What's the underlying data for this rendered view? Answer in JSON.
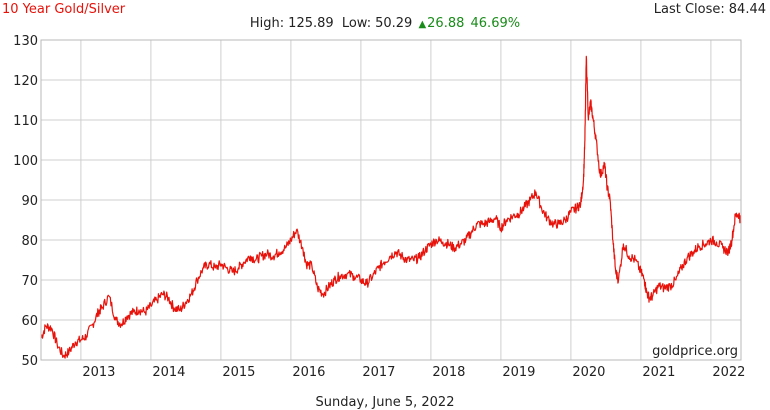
{
  "header": {
    "title": "10 Year Gold/Silver",
    "last_close_label": "Last Close:",
    "last_close_value": "84.44"
  },
  "stats": {
    "high_label": "High:",
    "high_value": "125.89",
    "low_label": "Low:",
    "low_value": "50.29",
    "change_value": "26.88",
    "change_pct": "46.69%"
  },
  "watermark": "goldprice.org",
  "footer_date": "Sunday, June 5, 2022",
  "colors": {
    "line": "#e8120a",
    "grid": "#cfcfcf",
    "up": "#1a8c1a",
    "title": "#e8120a"
  },
  "chart_data": {
    "type": "line",
    "title": "10 Year Gold/Silver",
    "xlabel": "",
    "ylabel": "",
    "xlim": [
      2012.43,
      2022.43
    ],
    "ylim": [
      50,
      130
    ],
    "yticks": [
      50,
      60,
      70,
      80,
      90,
      100,
      110,
      120,
      130
    ],
    "xticks": [
      2013,
      2014,
      2015,
      2016,
      2017,
      2018,
      2019,
      2020,
      2021,
      2022
    ],
    "grid": true,
    "legend": "none",
    "series": [
      {
        "x": [
          2012.43,
          2012.5,
          2012.58,
          2012.66,
          2012.75,
          2012.83,
          2012.92,
          2013.0,
          2013.08,
          2013.17,
          2013.25,
          2013.3,
          2013.4,
          2013.5,
          2013.58,
          2013.66,
          2013.75,
          2013.83,
          2013.92,
          2014.0,
          2014.08,
          2014.17,
          2014.25,
          2014.33,
          2014.42,
          2014.5,
          2014.58,
          2014.66,
          2014.75,
          2014.83,
          2014.92,
          2015.0,
          2015.08,
          2015.17,
          2015.25,
          2015.33,
          2015.42,
          2015.5,
          2015.58,
          2015.66,
          2015.75,
          2015.83,
          2015.92,
          2016.0,
          2016.08,
          2016.17,
          2016.22,
          2016.3,
          2016.38,
          2016.46,
          2016.55,
          2016.62,
          2016.7,
          2016.8,
          2016.9,
          2017.0,
          2017.08,
          2017.17,
          2017.25,
          2017.33,
          2017.42,
          2017.5,
          2017.58,
          2017.66,
          2017.75,
          2017.83,
          2017.92,
          2018.0,
          2018.08,
          2018.17,
          2018.25,
          2018.33,
          2018.42,
          2018.5,
          2018.58,
          2018.66,
          2018.75,
          2018.83,
          2018.92,
          2019.0,
          2019.08,
          2019.17,
          2019.25,
          2019.33,
          2019.42,
          2019.5,
          2019.58,
          2019.66,
          2019.75,
          2019.83,
          2019.92,
          2020.0,
          2020.08,
          2020.14,
          2020.18,
          2020.2,
          2020.22,
          2020.25,
          2020.28,
          2020.32,
          2020.36,
          2020.42,
          2020.48,
          2020.52,
          2020.56,
          2020.6,
          2020.64,
          2020.68,
          2020.75,
          2020.83,
          2020.92,
          2021.0,
          2021.05,
          2021.08,
          2021.12,
          2021.17,
          2021.25,
          2021.33,
          2021.42,
          2021.5,
          2021.58,
          2021.66,
          2021.75,
          2021.83,
          2021.92,
          2022.0,
          2022.08,
          2022.17,
          2022.25,
          2022.3,
          2022.35,
          2022.4,
          2022.43
        ],
        "values": [
          55.5,
          58.5,
          58.0,
          54.0,
          51.0,
          52.0,
          54.5,
          55.0,
          56.0,
          59.0,
          62.0,
          63.0,
          66.0,
          60.0,
          59.0,
          61.0,
          62.0,
          62.5,
          62.0,
          63.5,
          65.0,
          66.5,
          65.5,
          63.0,
          62.5,
          64.5,
          66.5,
          70.0,
          73.0,
          74.0,
          73.0,
          74.0,
          73.0,
          72.0,
          73.0,
          74.5,
          76.0,
          75.0,
          76.0,
          76.5,
          76.0,
          77.0,
          78.0,
          80.0,
          82.5,
          78.0,
          74.0,
          73.5,
          68.0,
          66.5,
          68.5,
          70.0,
          71.0,
          71.5,
          71.0,
          70.0,
          69.0,
          71.0,
          73.0,
          74.5,
          76.0,
          77.0,
          76.0,
          75.0,
          75.0,
          75.5,
          77.5,
          79.0,
          80.0,
          79.5,
          79.0,
          78.0,
          79.0,
          80.0,
          82.0,
          84.0,
          84.0,
          84.5,
          85.5,
          83.0,
          85.0,
          86.0,
          86.5,
          88.0,
          90.0,
          92.0,
          88.0,
          85.5,
          84.0,
          84.0,
          85.0,
          87.0,
          88.0,
          89.0,
          95.0,
          105.0,
          125.9,
          110.0,
          114.5,
          110.0,
          105.0,
          96.0,
          99.0,
          93.0,
          90.0,
          80.0,
          72.0,
          70.0,
          79.0,
          76.0,
          75.0,
          72.0,
          70.0,
          67.0,
          65.5,
          66.0,
          68.5,
          68.0,
          68.5,
          70.0,
          73.0,
          75.5,
          77.0,
          78.5,
          79.0,
          80.0,
          79.5,
          78.0,
          77.0,
          80.0,
          86.0,
          86.5,
          84.4
        ]
      }
    ]
  }
}
